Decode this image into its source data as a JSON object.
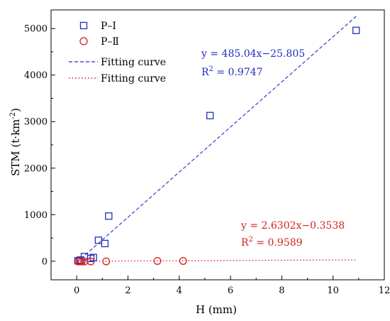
{
  "chart_data": {
    "type": "scatter",
    "xlabel": "H (mm)",
    "ylabel_main": "STM (t·km",
    "ylabel_sup": "-2",
    "ylabel_end": ")",
    "xlim": [
      -1,
      12
    ],
    "ylim": [
      -400,
      5400
    ],
    "xticks": [
      0,
      2,
      4,
      6,
      8,
      10,
      12
    ],
    "yticks": [
      0,
      1000,
      2000,
      3000,
      4000,
      5000
    ],
    "grid": false,
    "legend_position": "top-left",
    "series": [
      {
        "name": "P–Ⅰ",
        "marker": "square",
        "color": "#1f2fbf",
        "points": [
          {
            "x": 0.05,
            "y": 10
          },
          {
            "x": 0.15,
            "y": 25
          },
          {
            "x": 0.3,
            "y": 100
          },
          {
            "x": 0.55,
            "y": 60
          },
          {
            "x": 0.65,
            "y": 80
          },
          {
            "x": 0.85,
            "y": 450
          },
          {
            "x": 1.1,
            "y": 380
          },
          {
            "x": 1.25,
            "y": 970
          },
          {
            "x": 5.2,
            "y": 3130
          },
          {
            "x": 10.9,
            "y": 4960
          }
        ]
      },
      {
        "name": "P–Ⅱ",
        "marker": "circle",
        "color": "#d42020",
        "points": [
          {
            "x": 0.05,
            "y": -5
          },
          {
            "x": 0.1,
            "y": -5
          },
          {
            "x": 0.2,
            "y": -5
          },
          {
            "x": 0.3,
            "y": -5
          },
          {
            "x": 0.55,
            "y": -5
          },
          {
            "x": 1.15,
            "y": -5
          },
          {
            "x": 3.15,
            "y": 5
          },
          {
            "x": 4.15,
            "y": 5
          }
        ]
      }
    ],
    "fits": [
      {
        "name": "Fitting curve",
        "style": "dashed",
        "color": "#1f2fbf",
        "slope": 485.04,
        "intercept": -25.805,
        "x_range": [
          0,
          10.9
        ],
        "equation": "y = 485.04x−25.805",
        "r2_prefix": "R",
        "r2_sup": "2",
        "r2_value": " = 0.9747"
      },
      {
        "name": "Fitting curve",
        "style": "dotted",
        "color": "#d42020",
        "slope": 2.6302,
        "intercept": -0.3538,
        "x_range": [
          0,
          10.9
        ],
        "equation": "y = 2.6302x−0.3538",
        "r2_prefix": "R",
        "r2_sup": "2",
        "r2_value": " = 0.9589"
      }
    ]
  }
}
